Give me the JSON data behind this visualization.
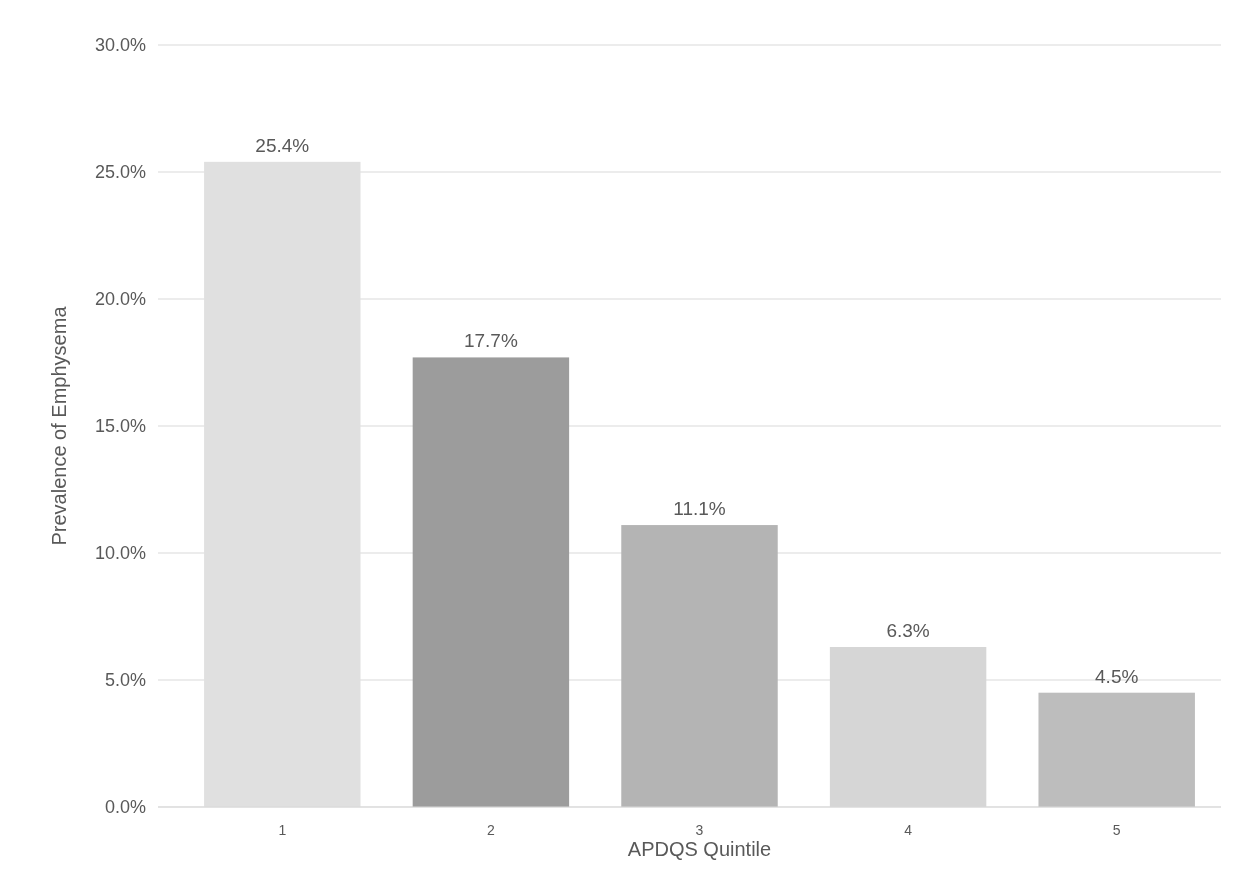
{
  "chart_data": {
    "type": "bar",
    "xlabel": "APDQS Quintile",
    "ylabel": "Prevalence of Emphysema",
    "categories": [
      "1",
      "2",
      "3",
      "4",
      "5"
    ],
    "values": [
      25.4,
      17.7,
      11.1,
      6.3,
      4.5
    ],
    "colors": [
      "#e0e0e0",
      "#9c9c9c",
      "#b4b4b4",
      "#d6d6d6",
      "#bdbdbd"
    ],
    "value_labels": [
      "25.4%",
      "17.7%",
      "11.1%",
      "6.3%",
      "4.5%"
    ],
    "ylim": [
      0,
      30
    ],
    "yticks": [
      {
        "value": 0,
        "label": "0.0%"
      },
      {
        "value": 5,
        "label": "5.0%"
      },
      {
        "value": 10,
        "label": "10.0%"
      },
      {
        "value": 15,
        "label": "15.0%"
      },
      {
        "value": 20,
        "label": "20.0%"
      },
      {
        "value": 25,
        "label": "25.0%"
      },
      {
        "value": 30,
        "label": "30.0%"
      }
    ],
    "grid": "y"
  }
}
